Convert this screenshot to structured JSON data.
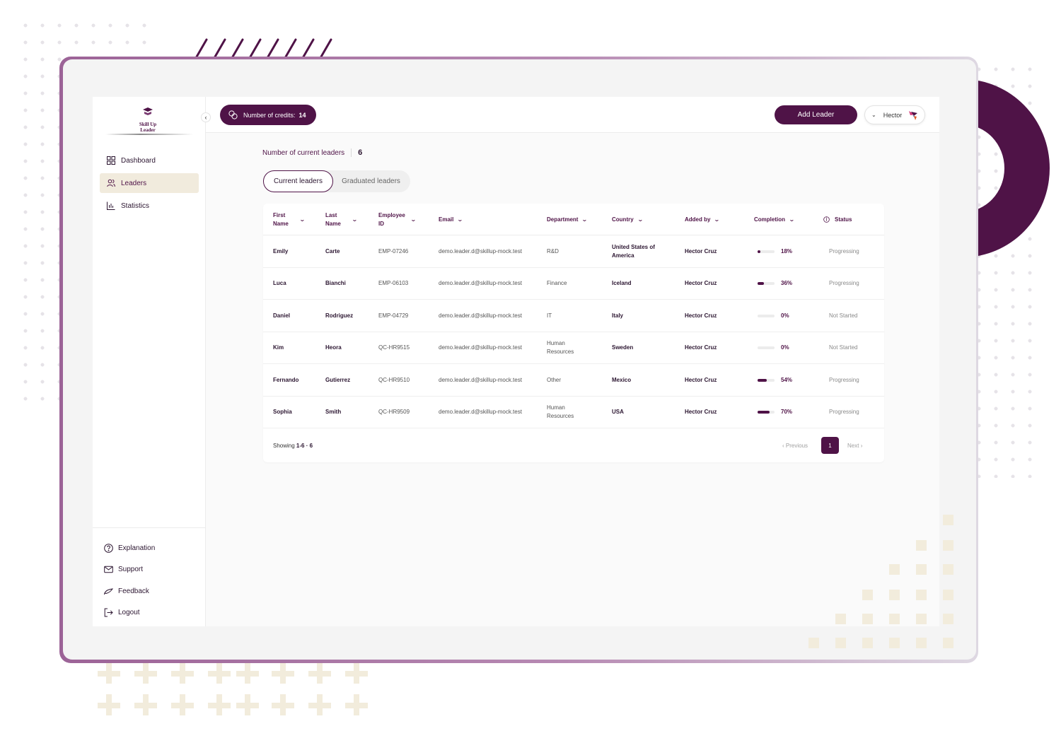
{
  "brand": {
    "logo_line1": "Skill Up",
    "logo_line2": "Leader",
    "accent_color": "#4f1347",
    "highlight_color": "#f1ebdd"
  },
  "sidebar": {
    "collapse_icon": "chevron-left-icon",
    "items": [
      {
        "label": "Dashboard",
        "icon": "grid-icon",
        "active": false
      },
      {
        "label": "Leaders",
        "icon": "users-icon",
        "active": true
      },
      {
        "label": "Statistics",
        "icon": "bar-chart-icon",
        "active": false
      }
    ],
    "bottom_items": [
      {
        "label": "Explanation",
        "icon": "help-circle-icon"
      },
      {
        "label": "Support",
        "icon": "mail-icon"
      },
      {
        "label": "Feedback",
        "icon": "feedback-icon"
      },
      {
        "label": "Logout",
        "icon": "logout-icon"
      }
    ]
  },
  "topbar": {
    "credits_label": "Number of credits:",
    "credits_value": "14",
    "add_leader_label": "Add Leader",
    "user_name": "Hector"
  },
  "summary": {
    "label": "Number of current leaders",
    "value": "6"
  },
  "tabs": [
    {
      "label": "Current leaders",
      "active": true
    },
    {
      "label": "Graduated leaders",
      "active": false
    }
  ],
  "table": {
    "columns": [
      {
        "line1": "First",
        "line2": "Name"
      },
      {
        "line1": "Last",
        "line2": "Name"
      },
      {
        "line1": "Employee",
        "line2": "ID"
      },
      {
        "line1": "Email",
        "line2": ""
      },
      {
        "line1": "Department",
        "line2": ""
      },
      {
        "line1": "Country",
        "line2": ""
      },
      {
        "line1": "Added by",
        "line2": ""
      },
      {
        "line1": "Completion",
        "line2": ""
      },
      {
        "line1": "Status",
        "line2": ""
      }
    ],
    "rows": [
      {
        "first": "Emily",
        "last": "Carte",
        "id": "EMP-07246",
        "email": "demo.leader.d@skillup-mock.test",
        "dept1": "R&D",
        "dept2": "",
        "country1": "United States of",
        "country2": "America",
        "added_by": "Hector Cruz",
        "completion": 18,
        "completion_label": "18%",
        "status": "Progressing"
      },
      {
        "first": "Luca",
        "last": "Bianchi",
        "id": "EMP-06103",
        "email": "demo.leader.d@skillup-mock.test",
        "dept1": "Finance",
        "dept2": "",
        "country1": "Iceland",
        "country2": "",
        "added_by": "Hector Cruz",
        "completion": 36,
        "completion_label": "36%",
        "status": "Progressing"
      },
      {
        "first": "Daniel",
        "last": "Rodriguez",
        "id": "EMP-04729",
        "email": "demo.leader.d@skillup-mock.test",
        "dept1": "IT",
        "dept2": "",
        "country1": "Italy",
        "country2": "",
        "added_by": "Hector Cruz",
        "completion": 0,
        "completion_label": "0%",
        "status": "Not Started"
      },
      {
        "first": "Kim",
        "last": "Heora",
        "id": "QC-HR9515",
        "email": "demo.leader.d@skillup-mock.test",
        "dept1": "Human",
        "dept2": "Resources",
        "country1": "Sweden",
        "country2": "",
        "added_by": "Hector Cruz",
        "completion": 0,
        "completion_label": "0%",
        "status": "Not Started"
      },
      {
        "first": "Fernando",
        "last": "Gutierrez",
        "id": "QC-HR9510",
        "email": "demo.leader.d@skillup-mock.test",
        "dept1": "Other",
        "dept2": "",
        "country1": "Mexico",
        "country2": "",
        "added_by": "Hector Cruz",
        "completion": 54,
        "completion_label": "54%",
        "status": "Progressing"
      },
      {
        "first": "Sophia",
        "last": "Smith",
        "id": "QC-HR9509",
        "email": "demo.leader.d@skillup-mock.test",
        "dept1": "Human",
        "dept2": "Resources",
        "country1": "USA",
        "country2": "",
        "added_by": "Hector Cruz",
        "completion": 70,
        "completion_label": "70%",
        "status": "Progressing"
      }
    ]
  },
  "pagination": {
    "showing_prefix": "Showing",
    "range": "1-6",
    "separator": "·",
    "total": "6",
    "previous_label": "Previous",
    "current_page": "1",
    "next_label": "Next"
  }
}
